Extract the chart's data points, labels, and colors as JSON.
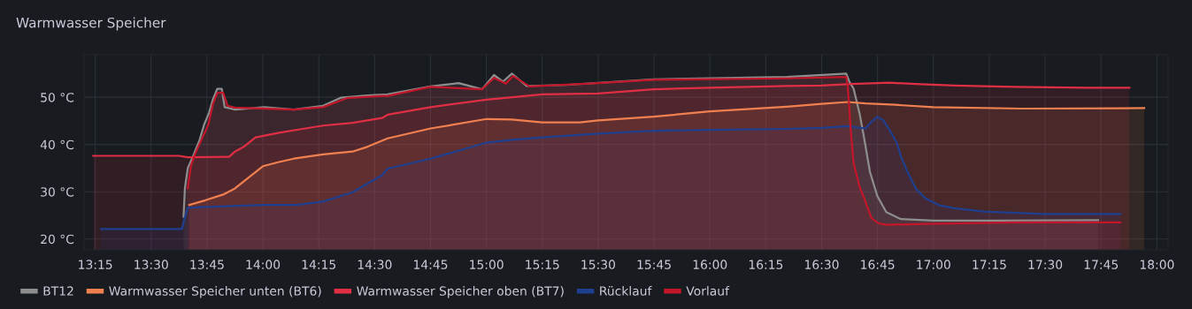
{
  "chart_data": {
    "type": "area",
    "title": "Warmwasser Speicher",
    "xlim": [
      13.2,
      18.05
    ],
    "ylim": [
      17.7,
      59
    ],
    "xticks": [
      {
        "value": 13.25,
        "label": "13:15"
      },
      {
        "value": 13.5,
        "label": "13:30"
      },
      {
        "value": 13.75,
        "label": "13:45"
      },
      {
        "value": 14.0,
        "label": "14:00"
      },
      {
        "value": 14.25,
        "label": "14:15"
      },
      {
        "value": 14.5,
        "label": "14:30"
      },
      {
        "value": 14.75,
        "label": "14:45"
      },
      {
        "value": 15.0,
        "label": "15:00"
      },
      {
        "value": 15.25,
        "label": "15:15"
      },
      {
        "value": 15.5,
        "label": "15:30"
      },
      {
        "value": 15.75,
        "label": "15:45"
      },
      {
        "value": 16.0,
        "label": "16:00"
      },
      {
        "value": 16.25,
        "label": "16:15"
      },
      {
        "value": 16.5,
        "label": "16:30"
      },
      {
        "value": 16.75,
        "label": "16:45"
      },
      {
        "value": 17.0,
        "label": "17:00"
      },
      {
        "value": 17.25,
        "label": "17:15"
      },
      {
        "value": 17.5,
        "label": "17:30"
      },
      {
        "value": 17.75,
        "label": "17:45"
      },
      {
        "value": 18.0,
        "label": "18:00"
      }
    ],
    "yticks": [
      {
        "value": 20,
        "label": "20 °C"
      },
      {
        "value": 30,
        "label": "30 °C"
      },
      {
        "value": 40,
        "label": "40 °C"
      },
      {
        "value": 50,
        "label": "50 °C"
      }
    ],
    "grid": true,
    "legend": "bottom",
    "line_style": "solid",
    "series": [
      {
        "name": "BT12",
        "color": "#8e8e8e",
        "x": [
          13.645,
          13.651,
          13.664,
          13.691,
          13.717,
          13.737,
          13.759,
          13.776,
          13.796,
          13.816,
          13.829,
          13.875,
          14.006,
          14.138,
          14.269,
          14.348,
          14.467,
          14.558,
          14.75,
          14.876,
          14.981,
          15.034,
          15.074,
          15.114,
          15.18,
          15.352,
          15.749,
          16.344,
          16.61,
          16.623,
          16.643,
          16.67,
          16.69,
          16.716,
          16.749,
          16.789,
          16.855,
          17.001,
          17.293,
          17.737
        ],
        "values": [
          24.7,
          30.7,
          35,
          37.9,
          41,
          44.2,
          46.7,
          49.5,
          51.8,
          51.8,
          47.9,
          47.4,
          47.9,
          47.4,
          48.2,
          49.9,
          50.4,
          50.6,
          52.3,
          53,
          51.7,
          54.7,
          53.3,
          55,
          52.4,
          52.6,
          53.8,
          54.3,
          55,
          53.4,
          51.8,
          46.5,
          41.4,
          34.2,
          29.1,
          25.7,
          24.2,
          23.9,
          23.9,
          24
        ]
      },
      {
        "name": "Warmwasser Speicher unten (BT6)",
        "color": "#f08050",
        "x": [
          13.671,
          13.743,
          13.822,
          13.875,
          13.941,
          14.0,
          14.072,
          14.138,
          14.269,
          14.401,
          14.467,
          14.558,
          14.75,
          15.001,
          15.114,
          15.249,
          15.418,
          15.5,
          15.749,
          16.0,
          16.344,
          16.5,
          16.617,
          16.696,
          16.829,
          16.999,
          17.399,
          17.943
        ],
        "values": [
          27.2,
          28.2,
          29.4,
          30.7,
          33.2,
          35.4,
          36.3,
          37,
          37.9,
          38.5,
          39.5,
          41.3,
          43.4,
          45.4,
          45.3,
          44.7,
          44.7,
          45.1,
          45.9,
          47,
          48,
          48.6,
          49,
          48.7,
          48.4,
          47.9,
          47.6,
          47.7
        ]
      },
      {
        "name": "Warmwasser Speicher oben (BT7)",
        "color": "#e02f44",
        "x": [
          13.241,
          13.625,
          13.664,
          13.849,
          13.875,
          13.914,
          13.967,
          14.072,
          14.177,
          14.269,
          14.401,
          14.533,
          14.558,
          14.75,
          15.001,
          15.249,
          15.5,
          15.749,
          16.0,
          16.344,
          16.5,
          16.63,
          16.749,
          16.802,
          16.922,
          17.094,
          17.359,
          17.684,
          17.877
        ],
        "values": [
          37.6,
          37.6,
          37.3,
          37.4,
          38.5,
          39.5,
          41.5,
          42.5,
          43.3,
          44,
          44.6,
          45.6,
          46.3,
          47.9,
          49.5,
          50.6,
          50.8,
          51.7,
          52,
          52.4,
          52.5,
          52.8,
          53,
          53.1,
          52.8,
          52.5,
          52.2,
          52,
          52
        ]
      },
      {
        "name": "Rücklauf",
        "color": "#1f3f8f",
        "x": [
          13.276,
          13.638,
          13.645,
          13.664,
          13.743,
          14.006,
          14.151,
          14.269,
          14.401,
          14.533,
          14.558,
          14.75,
          15.001,
          15.114,
          15.249,
          15.5,
          15.749,
          16.0,
          16.344,
          16.5,
          16.617,
          16.696,
          16.723,
          16.749,
          16.776,
          16.802,
          16.836,
          16.855,
          16.882,
          16.922,
          16.962,
          17.028,
          17.094,
          17.227,
          17.492,
          17.837
        ],
        "values": [
          22.1,
          22.1,
          23.6,
          26.6,
          26.8,
          27.2,
          27.2,
          27.9,
          29.9,
          33.5,
          34.9,
          37,
          40.4,
          41,
          41.5,
          42.3,
          42.9,
          43.1,
          43.3,
          43.5,
          43.9,
          43.4,
          44.8,
          45.9,
          45.1,
          43.2,
          40.4,
          37.5,
          34.4,
          30.6,
          28.7,
          27.1,
          26.5,
          25.8,
          25.3,
          25.3
        ]
      },
      {
        "name": "Vorlauf",
        "color": "#c4162a",
        "x": [
          13.664,
          13.678,
          13.697,
          13.73,
          13.756,
          13.776,
          13.796,
          13.822,
          13.842,
          13.875,
          14.138,
          14.269,
          14.375,
          14.533,
          14.558,
          14.75,
          14.981,
          15.034,
          15.087,
          15.12,
          15.193,
          15.5,
          15.749,
          16.344,
          16.61,
          16.617,
          16.63,
          16.643,
          16.67,
          16.696,
          16.723,
          16.756,
          16.789,
          16.962,
          17.359,
          17.837
        ],
        "values": [
          30.7,
          35.5,
          38,
          41.5,
          44.2,
          48.5,
          50.9,
          51,
          48.2,
          47.8,
          47.4,
          47.9,
          49.8,
          50.3,
          50.3,
          52.2,
          51.7,
          54.1,
          52.9,
          54.5,
          52.3,
          53,
          53.7,
          54,
          54.3,
          52.3,
          43.2,
          36,
          31,
          27.9,
          24.4,
          23.3,
          23,
          23.2,
          23.5,
          23.5
        ]
      }
    ]
  }
}
